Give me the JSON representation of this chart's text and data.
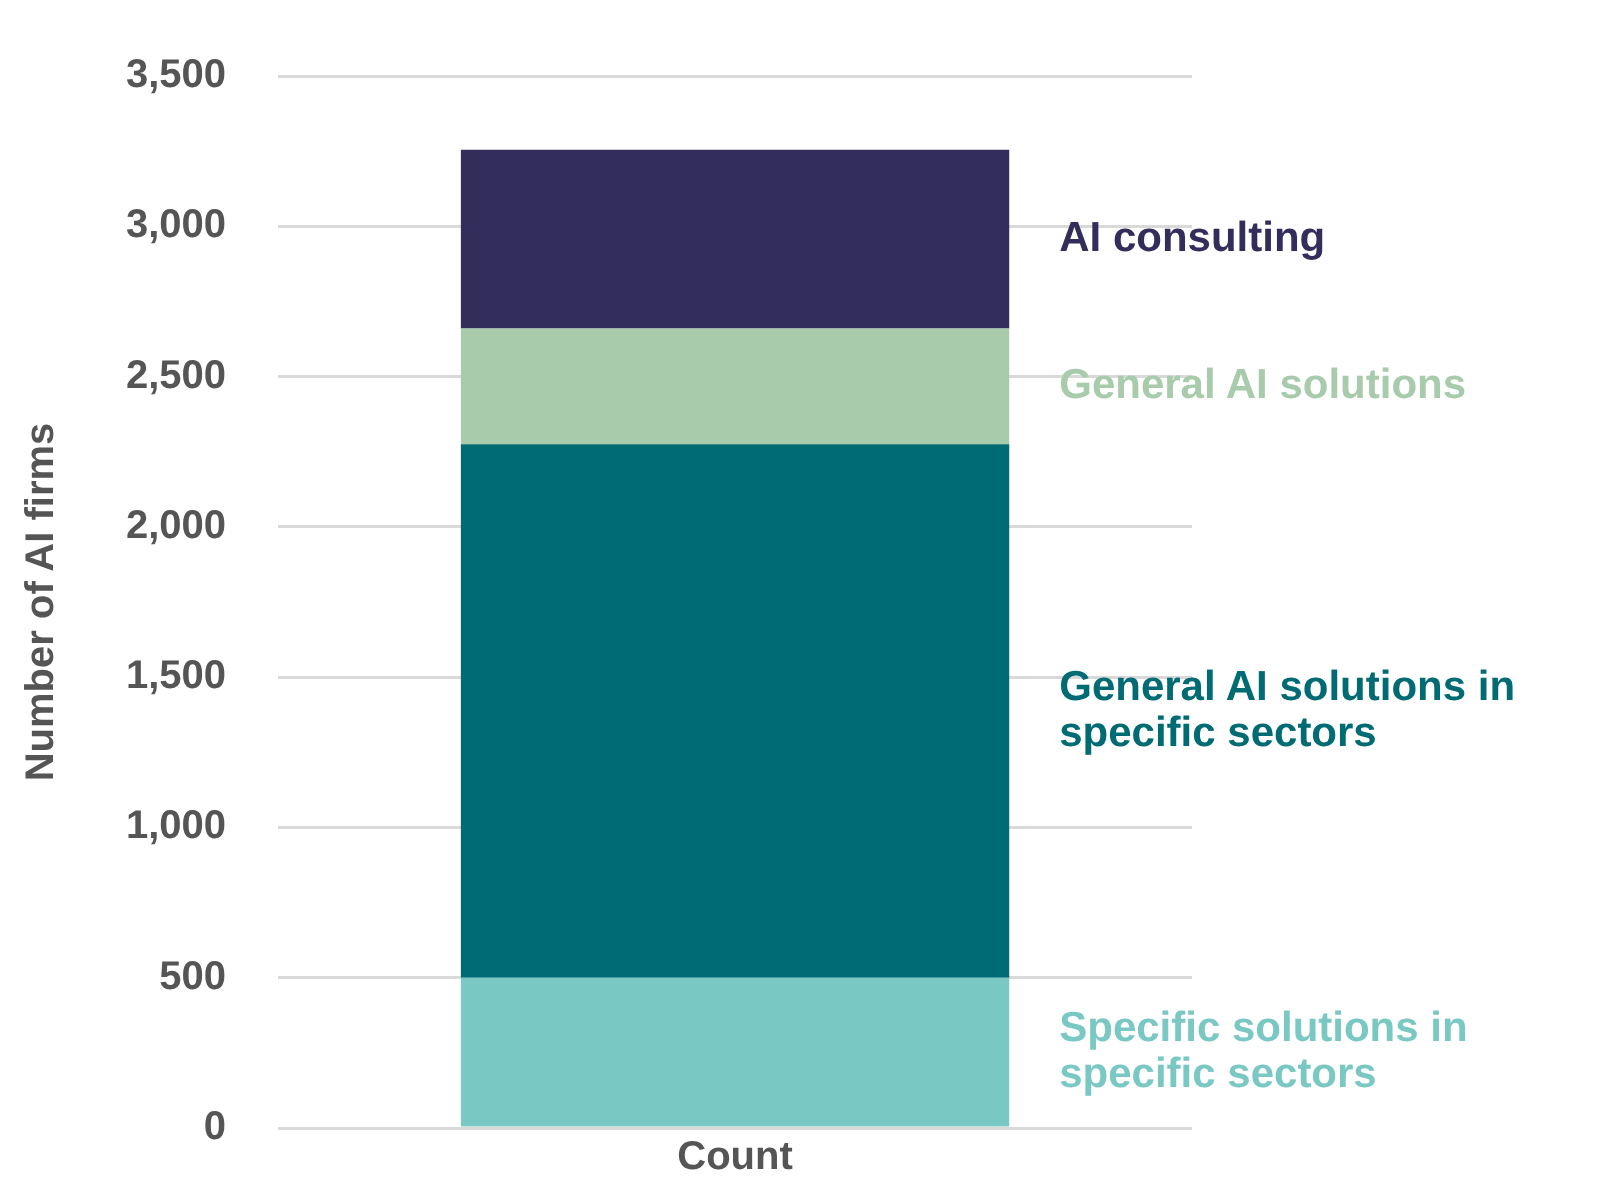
{
  "chart_data": {
    "type": "bar",
    "stacked": true,
    "ylabel": "Number of AI firms",
    "categories": [
      "Count"
    ],
    "series": [
      {
        "name": "Specific solutions in specific sectors",
        "color": "#7ac8c4",
        "values": [
          500
        ]
      },
      {
        "name": "General AI solutions in specific sectors",
        "color": "#006b73",
        "values": [
          1775
        ]
      },
      {
        "name": "General AI solutions",
        "color": "#a8cbab",
        "values": [
          385
        ]
      },
      {
        "name": "AI consulting",
        "color": "#322d5a",
        "values": [
          595
        ]
      }
    ],
    "ylim": [
      0,
      3500
    ],
    "yticks": [
      0,
      {
        "value": 500,
        "label": "500"
      },
      {
        "value": 1000,
        "label": "1,000"
      },
      {
        "value": 1500,
        "label": "1,500"
      },
      {
        "value": 2000,
        "label": "2,000"
      },
      {
        "value": 2500,
        "label": "2,500"
      },
      {
        "value": 3000,
        "label": "3,000"
      },
      {
        "value": 3500,
        "label": "3,500"
      }
    ],
    "grid": "y",
    "legend": false
  }
}
